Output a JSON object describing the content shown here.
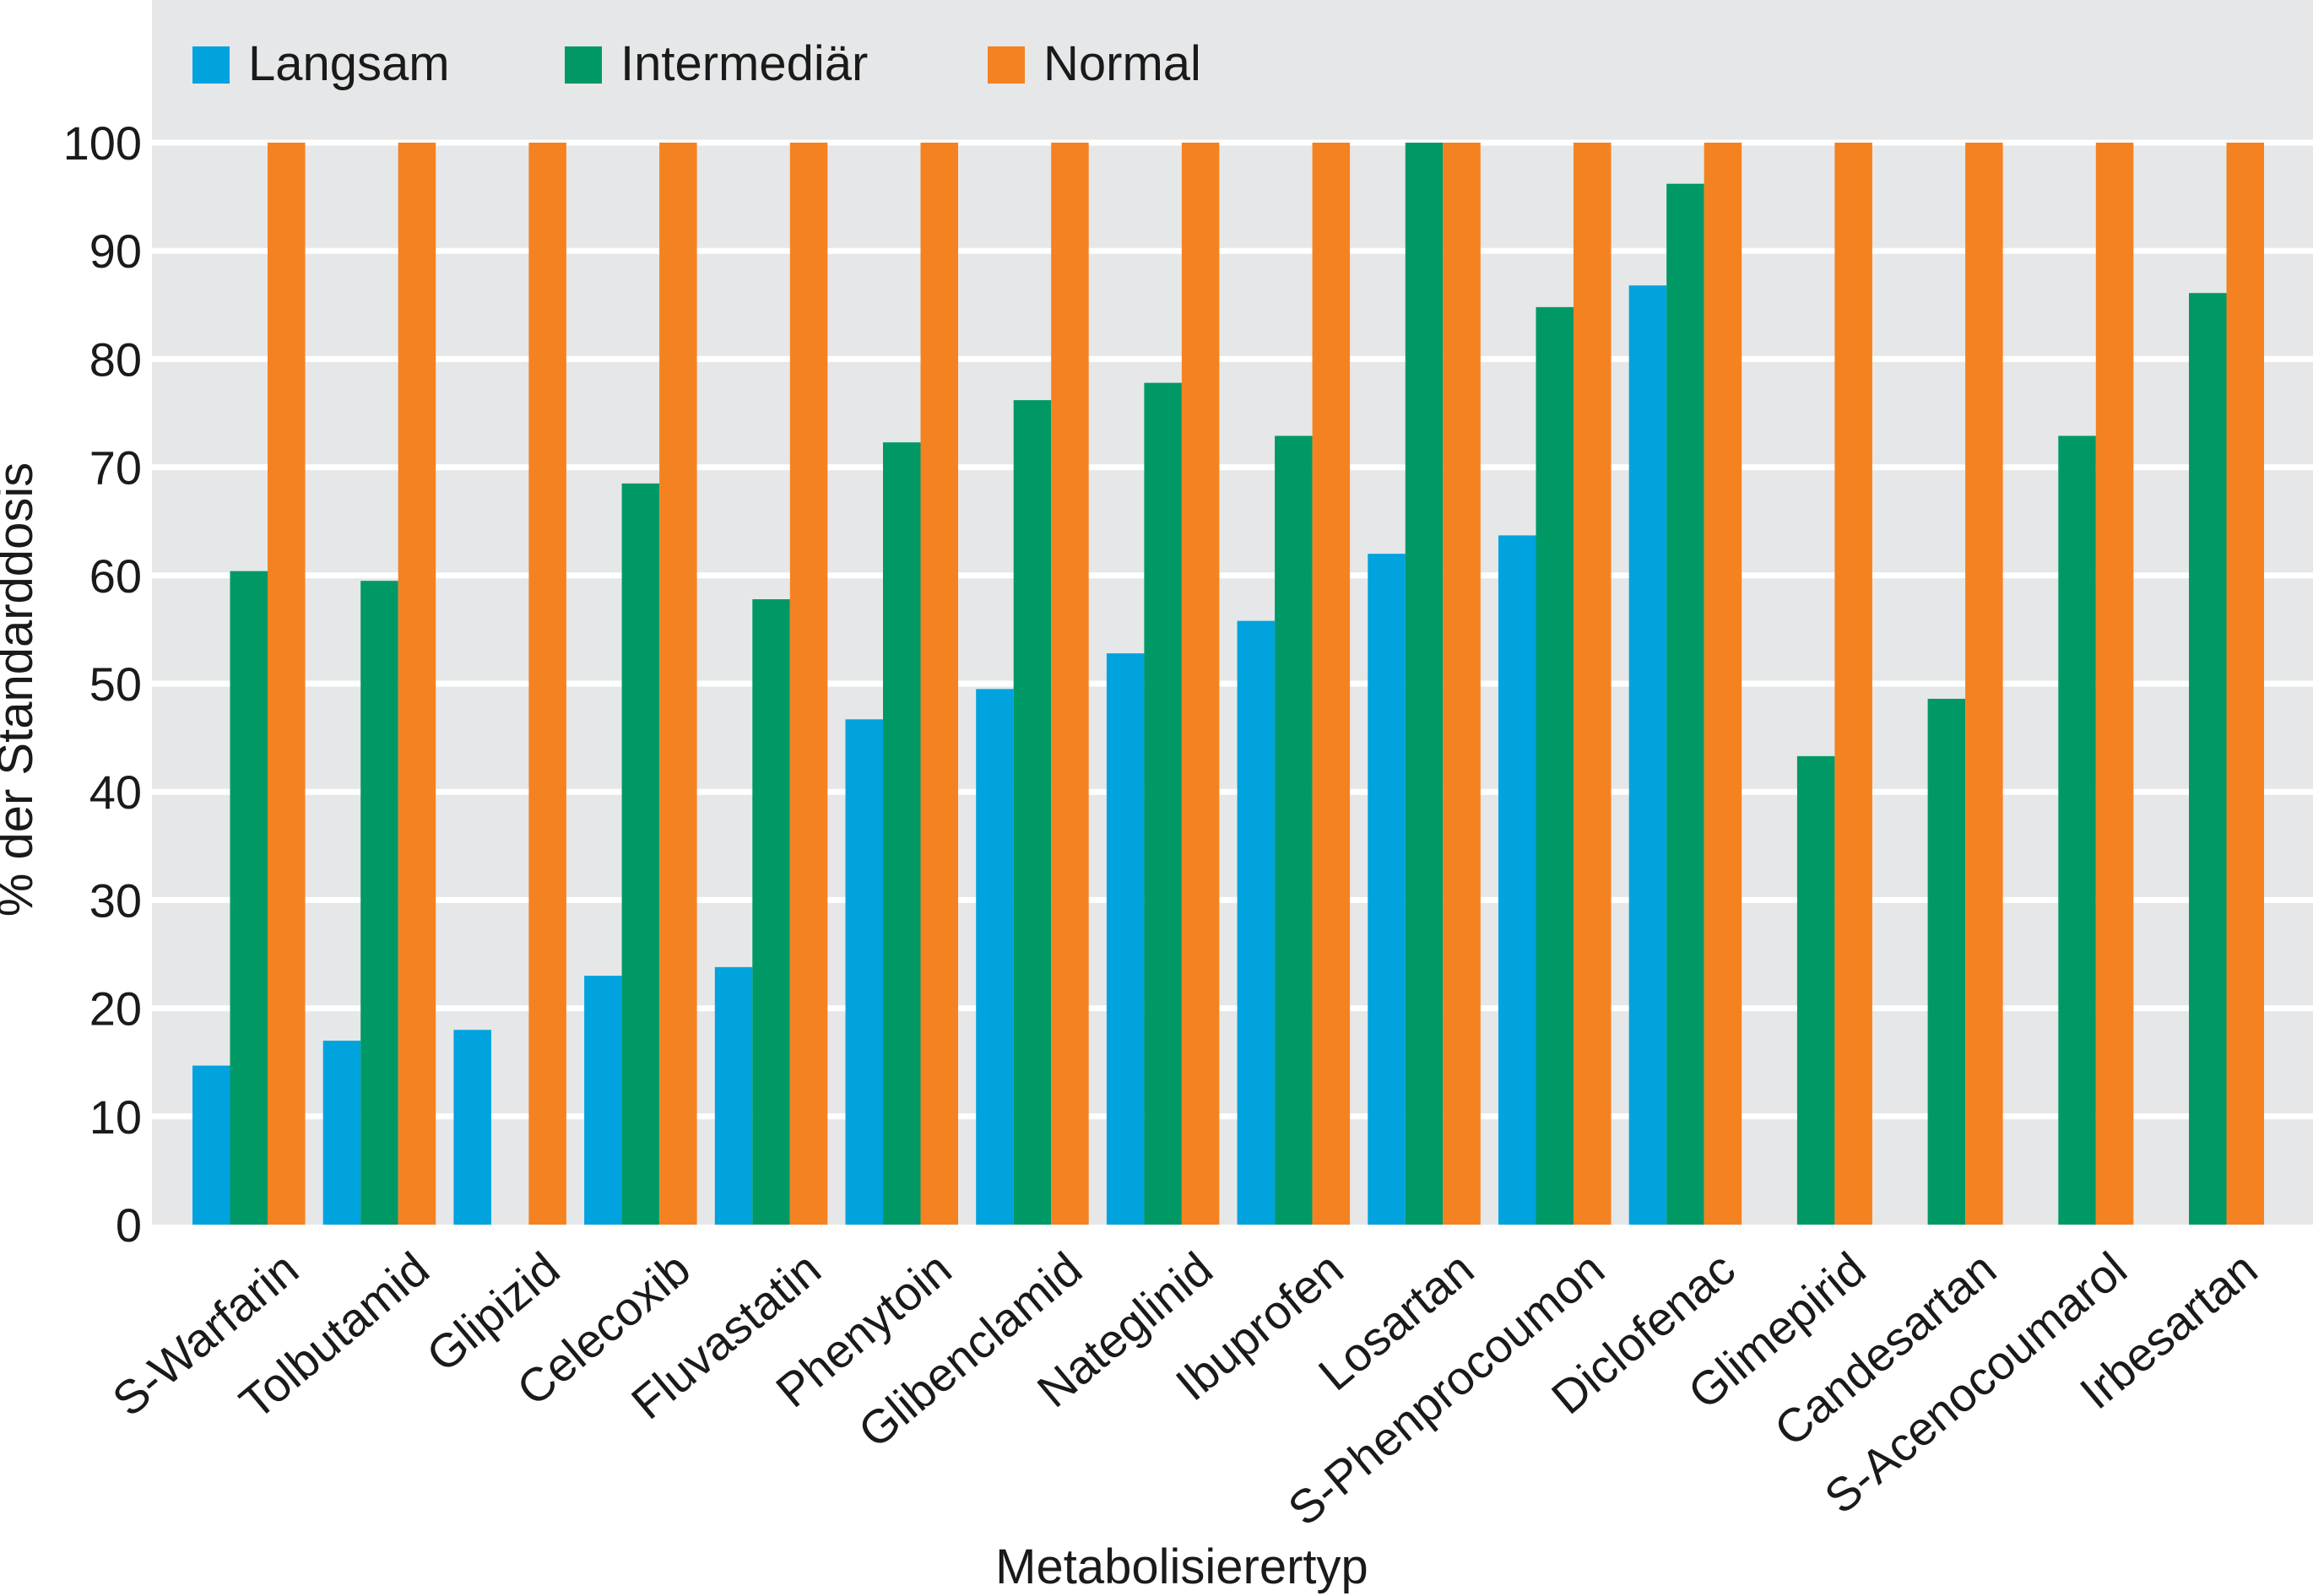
{
  "chart_data": {
    "type": "bar",
    "xlabel": "Metabolisierertyp",
    "ylabel": "% der Standarddosis",
    "ylim": [
      0,
      100
    ],
    "yticks": [
      0,
      10,
      20,
      30,
      40,
      50,
      60,
      70,
      80,
      90,
      100
    ],
    "grid": true,
    "legend_position": "top",
    "categories": [
      "S-Warfarin",
      "Tolbutamid",
      "Glipizid",
      "Celecoxib",
      "Fluvastatin",
      "Phenytoin",
      "Glibenclamid",
      "Nateglinid",
      "Ibuprofen",
      "Losartan",
      "S-Phenprocoumon",
      "Diclofenac",
      "Glimepirid",
      "Candesartan",
      "S-Acenocoumarol",
      "Irbesartan"
    ],
    "series": [
      {
        "name": "Langsam",
        "color": "#00a3de",
        "values": [
          14.7,
          17,
          18,
          23,
          23.8,
          46.7,
          49.5,
          52.8,
          55.8,
          62,
          63.7,
          86.8,
          null,
          null,
          null,
          null
        ]
      },
      {
        "name": "Intermediär",
        "color": "#009966",
        "values": [
          60.4,
          59.5,
          null,
          68.5,
          57.8,
          72.3,
          76.2,
          77.8,
          72.9,
          100,
          84.8,
          96.2,
          43.3,
          48.6,
          72.9,
          86.1
        ]
      },
      {
        "name": "Normal",
        "color": "#f58220",
        "values": [
          100,
          100,
          100,
          100,
          100,
          100,
          100,
          100,
          100,
          100,
          100,
          100,
          100,
          100,
          100,
          100
        ]
      }
    ],
    "background_color": "#e6e7e8"
  }
}
